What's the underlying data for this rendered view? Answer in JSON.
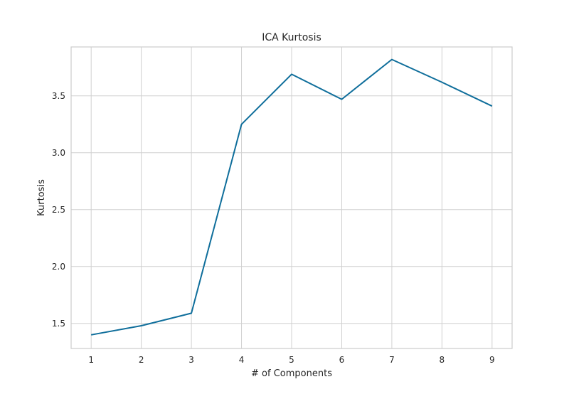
{
  "chart_data": {
    "type": "line",
    "title": "ICA Kurtosis",
    "xlabel": "# of Components",
    "ylabel": "Kurtosis",
    "x": [
      1,
      2,
      3,
      4,
      5,
      6,
      7,
      8,
      9
    ],
    "series": [
      {
        "name": "",
        "values": [
          1.4,
          1.48,
          1.59,
          3.25,
          3.69,
          3.47,
          3.82,
          3.62,
          3.41
        ],
        "color": "#0f6e9b"
      }
    ],
    "x_ticks": [
      "1",
      "2",
      "3",
      "4",
      "5",
      "6",
      "7",
      "8",
      "9"
    ],
    "y_ticks": [
      "1.5",
      "2.0",
      "2.5",
      "3.0",
      "3.5"
    ],
    "xlim": [
      0.6,
      9.4
    ],
    "ylim": [
      1.28,
      3.93
    ],
    "grid": true,
    "legend": "none"
  }
}
